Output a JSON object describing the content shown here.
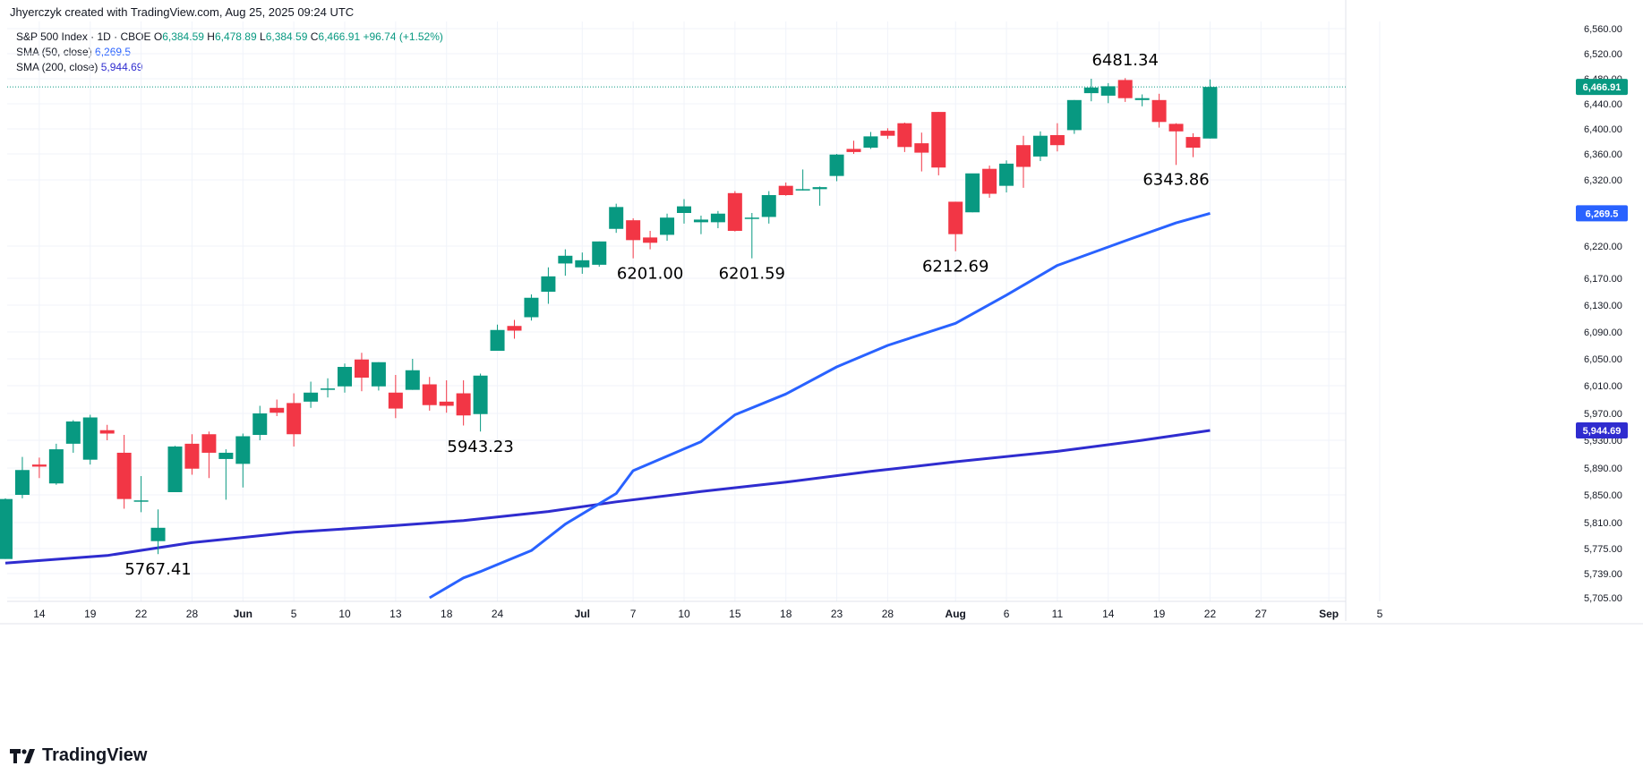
{
  "header": {
    "credit": "Jhyerczyk created with TradingView.com, Aug 25, 2025 09:24 UTC",
    "symbol": "S&P 500 Index · 1D · CBOE",
    "o_key": "O",
    "o_val": "6,384.59",
    "h_key": "H",
    "h_val": "6,478.89",
    "l_key": "L",
    "l_val": "6,384.59",
    "c_key": "C",
    "c_val": "6,466.91",
    "change": "+96.74 (+1.52%)",
    "sma50_label": "SMA (50, close)",
    "sma50_value": "6,269.5",
    "sma200_label": "SMA (200, close)",
    "sma200_value": "5,944.69"
  },
  "brand": {
    "name": "TradingView"
  },
  "colors": {
    "up": "#089981",
    "down": "#f23645",
    "sma50": "#2962ff",
    "sma200": "#2f2ccf",
    "grid": "#f0f3fa",
    "text": "#131722"
  },
  "chart_data": {
    "type": "candlestick",
    "title": "S&P 500 Index · 1D · CBOE",
    "y_tick_labels": [
      "6,560.00",
      "6,520.00",
      "6,480.00",
      "6,440.00",
      "6,400.00",
      "6,360.00",
      "6,320.00",
      "6,220.00",
      "6,170.00",
      "6,130.00",
      "6,090.00",
      "6,050.00",
      "6,010.00",
      "5,970.00",
      "5,930.00",
      "5,890.00",
      "5,850.00",
      "5,810.00",
      "5,775.00",
      "5,739.00",
      "5,705.00"
    ],
    "x_tick_labels": [
      {
        "label": "14",
        "date": "2025-05-14"
      },
      {
        "label": "19",
        "date": "2025-05-19"
      },
      {
        "label": "22",
        "date": "2025-05-22"
      },
      {
        "label": "28",
        "date": "2025-05-28"
      },
      {
        "label": "Jun",
        "date": "2025-06-02"
      },
      {
        "label": "5",
        "date": "2025-06-05"
      },
      {
        "label": "10",
        "date": "2025-06-10"
      },
      {
        "label": "13",
        "date": "2025-06-13"
      },
      {
        "label": "18",
        "date": "2025-06-18"
      },
      {
        "label": "24",
        "date": "2025-06-24"
      },
      {
        "label": "Jul",
        "date": "2025-07-01"
      },
      {
        "label": "7",
        "date": "2025-07-07"
      },
      {
        "label": "10",
        "date": "2025-07-10"
      },
      {
        "label": "15",
        "date": "2025-07-15"
      },
      {
        "label": "18",
        "date": "2025-07-18"
      },
      {
        "label": "23",
        "date": "2025-07-23"
      },
      {
        "label": "28",
        "date": "2025-07-28"
      },
      {
        "label": "Aug",
        "date": "2025-08-01"
      },
      {
        "label": "6",
        "date": "2025-08-06"
      },
      {
        "label": "11",
        "date": "2025-08-11"
      },
      {
        "label": "14",
        "date": "2025-08-14"
      },
      {
        "label": "19",
        "date": "2025-08-19"
      },
      {
        "label": "22",
        "date": "2025-08-22"
      },
      {
        "label": "27",
        "date": "2025-08-27"
      },
      {
        "label": "Sep",
        "date": "2025-09-02"
      },
      {
        "label": "5",
        "date": "2025-09-05"
      }
    ],
    "candles": [
      {
        "date": "2025-05-12",
        "o": 5760,
        "h": 5845,
        "l": 5760,
        "c": 5844
      },
      {
        "date": "2025-05-13",
        "o": 5850,
        "h": 5906,
        "l": 5845,
        "c": 5887
      },
      {
        "date": "2025-05-14",
        "o": 5895,
        "h": 5905,
        "l": 5875,
        "c": 5892
      },
      {
        "date": "2025-05-15",
        "o": 5867,
        "h": 5925,
        "l": 5865,
        "c": 5917
      },
      {
        "date": "2025-05-16",
        "o": 5925,
        "h": 5960,
        "l": 5912,
        "c": 5958
      },
      {
        "date": "2025-05-19",
        "o": 5902,
        "h": 5968,
        "l": 5895,
        "c": 5964
      },
      {
        "date": "2025-05-20",
        "o": 5945,
        "h": 5953,
        "l": 5930,
        "c": 5940
      },
      {
        "date": "2025-05-21",
        "o": 5912,
        "h": 5938,
        "l": 5830,
        "c": 5844
      },
      {
        "date": "2025-05-22",
        "o": 5842,
        "h": 5878,
        "l": 5825,
        "c": 5842
      },
      {
        "date": "2025-05-23",
        "o": 5785,
        "h": 5829,
        "l": 5767,
        "c": 5803
      },
      {
        "date": "2025-05-27",
        "o": 5854,
        "h": 5922,
        "l": 5854,
        "c": 5921
      },
      {
        "date": "2025-05-28",
        "o": 5925,
        "h": 5939,
        "l": 5880,
        "c": 5889
      },
      {
        "date": "2025-05-29",
        "o": 5939,
        "h": 5943,
        "l": 5875,
        "c": 5912
      },
      {
        "date": "2025-05-30",
        "o": 5903,
        "h": 5917,
        "l": 5843,
        "c": 5912
      },
      {
        "date": "2025-06-02",
        "o": 5896,
        "h": 5940,
        "l": 5861,
        "c": 5936
      },
      {
        "date": "2025-06-03",
        "o": 5938,
        "h": 5981,
        "l": 5930,
        "c": 5970
      },
      {
        "date": "2025-06-04",
        "o": 5978,
        "h": 5990,
        "l": 5966,
        "c": 5971
      },
      {
        "date": "2025-06-05",
        "o": 5985,
        "h": 5999,
        "l": 5921,
        "c": 5939
      },
      {
        "date": "2025-06-06",
        "o": 5987,
        "h": 6016,
        "l": 5978,
        "c": 6000
      },
      {
        "date": "2025-06-09",
        "o": 6004,
        "h": 6021,
        "l": 5993,
        "c": 6006
      },
      {
        "date": "2025-06-10",
        "o": 6009,
        "h": 6043,
        "l": 6000,
        "c": 6038
      },
      {
        "date": "2025-06-11",
        "o": 6049,
        "h": 6059,
        "l": 6002,
        "c": 6022
      },
      {
        "date": "2025-06-12",
        "o": 6009,
        "h": 6045,
        "l": 6003,
        "c": 6045
      },
      {
        "date": "2025-06-13",
        "o": 6000,
        "h": 6026,
        "l": 5963,
        "c": 5977
      },
      {
        "date": "2025-06-16",
        "o": 6004,
        "h": 6050,
        "l": 6004,
        "c": 6033
      },
      {
        "date": "2025-06-17",
        "o": 6012,
        "h": 6023,
        "l": 5974,
        "c": 5982
      },
      {
        "date": "2025-06-18",
        "o": 5987,
        "h": 6018,
        "l": 5971,
        "c": 5981
      },
      {
        "date": "2025-06-20",
        "o": 5999,
        "h": 6018,
        "l": 5952,
        "c": 5967
      },
      {
        "date": "2025-06-23",
        "o": 5969,
        "h": 6028,
        "l": 5943,
        "c": 6025
      },
      {
        "date": "2025-06-24",
        "o": 6062,
        "h": 6101,
        "l": 6062,
        "c": 6093
      },
      {
        "date": "2025-06-25",
        "o": 6099,
        "h": 6108,
        "l": 6080,
        "c": 6092
      },
      {
        "date": "2025-06-26",
        "o": 6112,
        "h": 6146,
        "l": 6107,
        "c": 6141
      },
      {
        "date": "2025-06-27",
        "o": 6150,
        "h": 6187,
        "l": 6132,
        "c": 6173
      },
      {
        "date": "2025-06-30",
        "o": 6193,
        "h": 6215,
        "l": 6174,
        "c": 6205
      },
      {
        "date": "2025-07-01",
        "o": 6187,
        "h": 6210,
        "l": 6177,
        "c": 6198
      },
      {
        "date": "2025-07-02",
        "o": 6191,
        "h": 6227,
        "l": 6188,
        "c": 6227
      },
      {
        "date": "2025-07-03",
        "o": 6246,
        "h": 6284,
        "l": 6240,
        "c": 6279
      },
      {
        "date": "2025-07-07",
        "o": 6259,
        "h": 6262,
        "l": 6201,
        "c": 6229
      },
      {
        "date": "2025-07-08",
        "o": 6233,
        "h": 6243,
        "l": 6215,
        "c": 6225
      },
      {
        "date": "2025-07-09",
        "o": 6237,
        "h": 6269,
        "l": 6228,
        "c": 6263
      },
      {
        "date": "2025-07-10",
        "o": 6270,
        "h": 6291,
        "l": 6254,
        "c": 6280
      },
      {
        "date": "2025-07-11",
        "o": 6256,
        "h": 6266,
        "l": 6238,
        "c": 6260
      },
      {
        "date": "2025-07-14",
        "o": 6256,
        "h": 6273,
        "l": 6247,
        "c": 6269
      },
      {
        "date": "2025-07-15",
        "o": 6300,
        "h": 6303,
        "l": 6242,
        "c": 6243
      },
      {
        "date": "2025-07-16",
        "o": 6262,
        "h": 6270,
        "l": 6201,
        "c": 6263
      },
      {
        "date": "2025-07-17",
        "o": 6264,
        "h": 6303,
        "l": 6254,
        "c": 6297
      },
      {
        "date": "2025-07-18",
        "o": 6311,
        "h": 6316,
        "l": 6296,
        "c": 6297
      },
      {
        "date": "2025-07-21",
        "o": 6306,
        "h": 6336,
        "l": 6304,
        "c": 6306
      },
      {
        "date": "2025-07-22",
        "o": 6306,
        "h": 6310,
        "l": 6281,
        "c": 6309
      },
      {
        "date": "2025-07-23",
        "o": 6326,
        "h": 6360,
        "l": 6318,
        "c": 6359
      },
      {
        "date": "2025-07-24",
        "o": 6368,
        "h": 6381,
        "l": 6360,
        "c": 6363
      },
      {
        "date": "2025-07-25",
        "o": 6370,
        "h": 6395,
        "l": 6368,
        "c": 6388
      },
      {
        "date": "2025-07-28",
        "o": 6397,
        "h": 6401,
        "l": 6384,
        "c": 6389
      },
      {
        "date": "2025-07-29",
        "o": 6409,
        "h": 6410,
        "l": 6363,
        "c": 6371
      },
      {
        "date": "2025-07-30",
        "o": 6377,
        "h": 6394,
        "l": 6333,
        "c": 6362
      },
      {
        "date": "2025-07-31",
        "o": 6427,
        "h": 6427,
        "l": 6327,
        "c": 6339
      },
      {
        "date": "2025-08-01",
        "o": 6287,
        "h": 6287,
        "l": 6212,
        "c": 6238
      },
      {
        "date": "2025-08-04",
        "o": 6271,
        "h": 6329,
        "l": 6271,
        "c": 6330
      },
      {
        "date": "2025-08-05",
        "o": 6337,
        "h": 6342,
        "l": 6293,
        "c": 6299
      },
      {
        "date": "2025-08-06",
        "o": 6311,
        "h": 6350,
        "l": 6301,
        "c": 6345
      },
      {
        "date": "2025-08-07",
        "o": 6374,
        "h": 6389,
        "l": 6308,
        "c": 6340
      },
      {
        "date": "2025-08-08",
        "o": 6356,
        "h": 6396,
        "l": 6349,
        "c": 6389
      },
      {
        "date": "2025-08-11",
        "o": 6390,
        "h": 6409,
        "l": 6364,
        "c": 6374
      },
      {
        "date": "2025-08-12",
        "o": 6398,
        "h": 6446,
        "l": 6392,
        "c": 6446
      },
      {
        "date": "2025-08-13",
        "o": 6457,
        "h": 6480,
        "l": 6444,
        "c": 6466
      },
      {
        "date": "2025-08-14",
        "o": 6453,
        "h": 6473,
        "l": 6441,
        "c": 6468
      },
      {
        "date": "2025-08-15",
        "o": 6478,
        "h": 6481,
        "l": 6443,
        "c": 6449
      },
      {
        "date": "2025-08-18",
        "o": 6446,
        "h": 6455,
        "l": 6436,
        "c": 6449
      },
      {
        "date": "2025-08-19",
        "o": 6446,
        "h": 6456,
        "l": 6402,
        "c": 6411
      },
      {
        "date": "2025-08-20",
        "o": 6408,
        "h": 6409,
        "l": 6343,
        "c": 6396
      },
      {
        "date": "2025-08-21",
        "o": 6387,
        "h": 6393,
        "l": 6355,
        "c": 6370
      },
      {
        "date": "2025-08-22",
        "o": 6384.59,
        "h": 6478.89,
        "l": 6384.59,
        "c": 6466.91
      }
    ],
    "sma50": {
      "name": "SMA (50, close)",
      "points": [
        {
          "date": "2025-06-17",
          "v": 5705
        },
        {
          "date": "2025-06-20",
          "v": 5733
        },
        {
          "date": "2025-06-23",
          "v": 5742
        },
        {
          "date": "2025-06-26",
          "v": 5772
        },
        {
          "date": "2025-06-30",
          "v": 5808
        },
        {
          "date": "2025-07-03",
          "v": 5852
        },
        {
          "date": "2025-07-07",
          "v": 5886
        },
        {
          "date": "2025-07-11",
          "v": 5928
        },
        {
          "date": "2025-07-15",
          "v": 5968
        },
        {
          "date": "2025-07-18",
          "v": 5998
        },
        {
          "date": "2025-07-23",
          "v": 6038
        },
        {
          "date": "2025-07-28",
          "v": 6070
        },
        {
          "date": "2025-08-01",
          "v": 6103
        },
        {
          "date": "2025-08-06",
          "v": 6145
        },
        {
          "date": "2025-08-11",
          "v": 6190
        },
        {
          "date": "2025-08-15",
          "v": 6228
        },
        {
          "date": "2025-08-20",
          "v": 6255
        },
        {
          "date": "2025-08-22",
          "v": 6269.5
        }
      ]
    },
    "sma200": {
      "name": "SMA (200, close)",
      "points": [
        {
          "date": "2025-05-12",
          "v": 5754
        },
        {
          "date": "2025-05-20",
          "v": 5765
        },
        {
          "date": "2025-05-28",
          "v": 5783
        },
        {
          "date": "2025-06-05",
          "v": 5797
        },
        {
          "date": "2025-06-13",
          "v": 5806
        },
        {
          "date": "2025-06-20",
          "v": 5813
        },
        {
          "date": "2025-06-27",
          "v": 5826
        },
        {
          "date": "2025-07-03",
          "v": 5840
        },
        {
          "date": "2025-07-11",
          "v": 5855
        },
        {
          "date": "2025-07-18",
          "v": 5869
        },
        {
          "date": "2025-07-25",
          "v": 5885
        },
        {
          "date": "2025-08-01",
          "v": 5899
        },
        {
          "date": "2025-08-11",
          "v": 5914
        },
        {
          "date": "2025-08-18",
          "v": 5930
        },
        {
          "date": "2025-08-22",
          "v": 5944.69
        }
      ]
    },
    "annotations": [
      {
        "text": "5767.41",
        "date": "2025-05-23",
        "v": 5767.41,
        "pos": "below"
      },
      {
        "text": "5943.23",
        "date": "2025-06-23",
        "v": 5943.23,
        "pos": "below"
      },
      {
        "text": "6201.00",
        "date": "2025-07-08",
        "v": 6201.0,
        "pos": "below"
      },
      {
        "text": "6201.59",
        "date": "2025-07-16",
        "v": 6201.59,
        "pos": "below"
      },
      {
        "text": "6212.69",
        "date": "2025-08-01",
        "v": 6212.69,
        "pos": "below"
      },
      {
        "text": "6481.34",
        "date": "2025-08-15",
        "v": 6481.34,
        "pos": "above"
      },
      {
        "text": "6343.86",
        "date": "2025-08-20",
        "v": 6343.86,
        "pos": "below"
      }
    ],
    "price_badges": [
      {
        "text": "6,466.91",
        "v": 6466.91,
        "color": "#089981"
      },
      {
        "text": "6,269.5",
        "v": 6269.5,
        "color": "#2962ff"
      },
      {
        "text": "5,944.69",
        "v": 5944.69,
        "color": "#2f2ccf"
      }
    ],
    "last_close": 6466.91,
    "grid": true
  }
}
